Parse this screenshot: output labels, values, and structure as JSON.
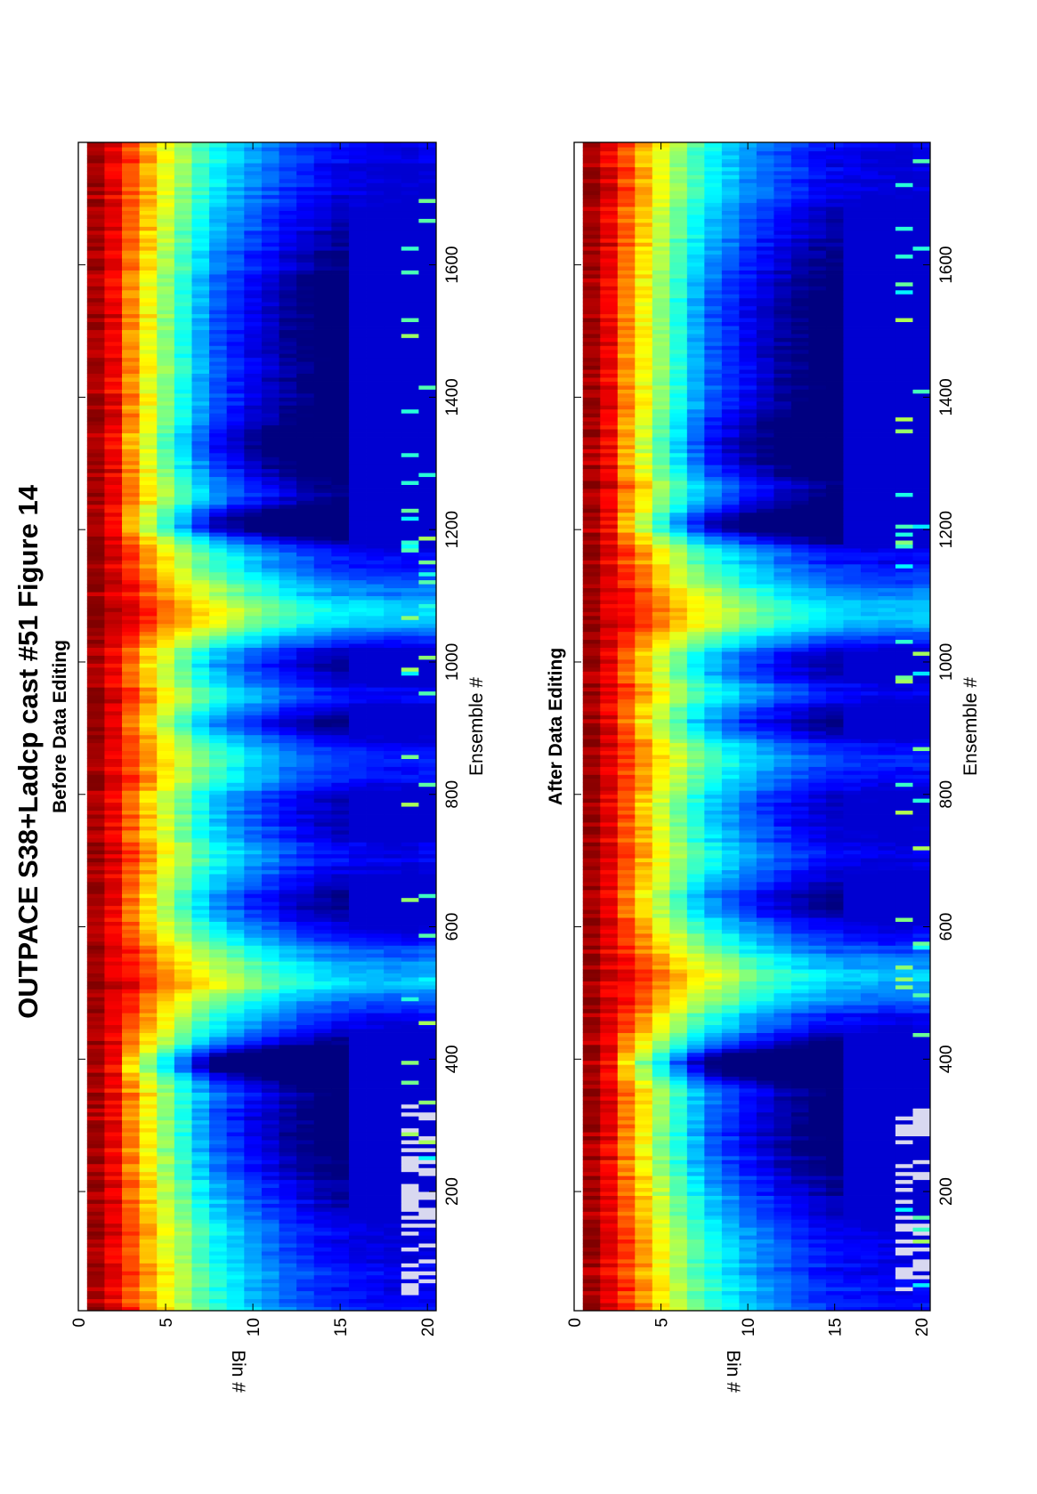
{
  "figure_title": "OUTPACE S38+Ladcp cast #51  Figure 14",
  "chart_data": [
    {
      "type": "heatmap",
      "title": "Before Data Editing",
      "xlabel": "Ensemble #",
      "ylabel": "Bin #",
      "xlim": [
        20,
        1785
      ],
      "ylim": [
        0,
        20.5
      ],
      "xticks": [
        200,
        400,
        600,
        800,
        1000,
        1200,
        1400,
        1600
      ],
      "yticks": [
        0,
        5,
        10,
        15,
        20
      ],
      "colormap": "jet",
      "profile_bins": [
        1,
        2,
        3,
        4,
        5,
        6,
        7,
        8,
        9,
        10,
        11,
        12,
        13,
        14,
        15,
        16,
        17,
        18,
        19,
        20
      ],
      "profile_typical": [
        0.97,
        0.9,
        0.82,
        0.73,
        0.64,
        0.56,
        0.48,
        0.42,
        0.37,
        0.32,
        0.28,
        0.24,
        0.21,
        0.18,
        0.16,
        0.15,
        0.14,
        0.13,
        0.13,
        0.14
      ],
      "bad_data_ensembles": [
        [
          40,
          330
        ]
      ],
      "vertical_pattern_ensembles": [
        380,
        520,
        760,
        900,
        1070,
        1200
      ]
    },
    {
      "type": "heatmap",
      "title": "After Data Editing",
      "xlabel": "Ensemble #",
      "ylabel": "Bin #",
      "xlim": [
        20,
        1785
      ],
      "ylim": [
        0,
        20.5
      ],
      "xticks": [
        200,
        400,
        600,
        800,
        1000,
        1200,
        1400,
        1600
      ],
      "yticks": [
        0,
        5,
        10,
        15,
        20
      ],
      "colormap": "jet",
      "profile_bins": [
        1,
        2,
        3,
        4,
        5,
        6,
        7,
        8,
        9,
        10,
        11,
        12,
        13,
        14,
        15,
        16,
        17,
        18,
        19,
        20
      ],
      "profile_typical": [
        0.97,
        0.9,
        0.82,
        0.73,
        0.64,
        0.56,
        0.48,
        0.42,
        0.37,
        0.32,
        0.28,
        0.24,
        0.21,
        0.18,
        0.16,
        0.15,
        0.14,
        0.13,
        0.13,
        0.14
      ],
      "bad_data_ensembles": [
        [
          40,
          330
        ]
      ],
      "vertical_pattern_ensembles": [
        380,
        520,
        760,
        900,
        1070,
        1200
      ]
    }
  ]
}
